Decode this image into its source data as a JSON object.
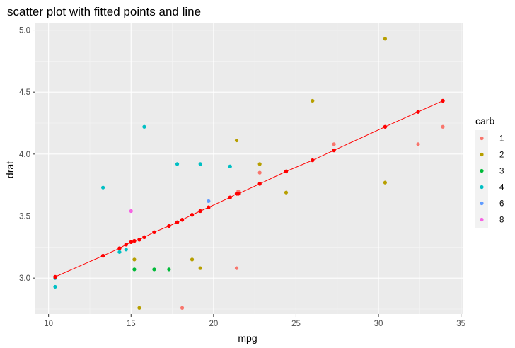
{
  "chart_data": {
    "type": "scatter",
    "title": "scatter plot with fitted points and line",
    "xlabel": "mpg",
    "ylabel": "drat",
    "xlim": [
      9.2,
      35.1
    ],
    "ylim": [
      2.71,
      5.06
    ],
    "xticks": [
      10,
      15,
      20,
      25,
      30,
      35
    ],
    "xtick_labels": [
      "10",
      "15",
      "20",
      "25",
      "30",
      "35"
    ],
    "yticks": [
      3.0,
      3.5,
      4.0,
      4.5,
      5.0
    ],
    "ytick_labels": [
      "3.0",
      "3.5",
      "4.0",
      "4.5",
      "5.0"
    ],
    "grid": true,
    "legend": {
      "title": "carb",
      "position": "right",
      "entries": [
        {
          "label": "1",
          "color": "#F8766D"
        },
        {
          "label": "2",
          "color": "#B79F00"
        },
        {
          "label": "3",
          "color": "#00BA38"
        },
        {
          "label": "4",
          "color": "#00BFC4"
        },
        {
          "label": "6",
          "color": "#619CFF"
        },
        {
          "label": "8",
          "color": "#F564E3"
        }
      ]
    },
    "series": [
      {
        "name": "1",
        "color": "#F8766D",
        "x": [
          22.8,
          21.4,
          18.1,
          32.4,
          33.9,
          27.3,
          21.5
        ],
        "y": [
          3.85,
          3.08,
          2.76,
          4.08,
          4.22,
          4.08,
          3.7
        ]
      },
      {
        "name": "2",
        "color": "#B79F00",
        "x": [
          18.7,
          24.4,
          22.8,
          30.4,
          15.5,
          15.2,
          19.2,
          26.0,
          30.4,
          21.4
        ],
        "y": [
          3.15,
          3.69,
          3.92,
          4.93,
          2.76,
          3.15,
          3.08,
          4.43,
          3.77,
          4.11
        ]
      },
      {
        "name": "3",
        "color": "#00BA38",
        "x": [
          16.4,
          17.3,
          15.2
        ],
        "y": [
          3.07,
          3.07,
          3.07
        ]
      },
      {
        "name": "4",
        "color": "#00BFC4",
        "x": [
          21.0,
          21.0,
          14.3,
          19.2,
          17.8,
          10.4,
          10.4,
          14.7,
          13.3,
          15.8
        ],
        "y": [
          3.9,
          3.9,
          3.21,
          3.92,
          3.92,
          2.93,
          3.0,
          3.23,
          3.73,
          4.22
        ]
      },
      {
        "name": "6",
        "color": "#619CFF",
        "x": [
          19.7
        ],
        "y": [
          3.62
        ]
      },
      {
        "name": "8",
        "color": "#F564E3",
        "x": [
          15.0
        ],
        "y": [
          3.54
        ]
      }
    ],
    "fitted": {
      "color": "#FF0000",
      "x": [
        10.4,
        13.3,
        14.3,
        14.7,
        15.0,
        15.2,
        15.5,
        15.8,
        16.4,
        17.3,
        17.8,
        18.1,
        18.7,
        19.2,
        19.7,
        21.0,
        21.4,
        21.5,
        22.8,
        24.4,
        26.0,
        27.3,
        30.4,
        32.4,
        33.9
      ],
      "y": [
        3.01,
        3.18,
        3.24,
        3.27,
        3.29,
        3.3,
        3.31,
        3.33,
        3.37,
        3.42,
        3.45,
        3.47,
        3.51,
        3.54,
        3.57,
        3.65,
        3.68,
        3.68,
        3.76,
        3.86,
        3.95,
        4.03,
        4.22,
        4.34,
        4.43
      ]
    }
  }
}
